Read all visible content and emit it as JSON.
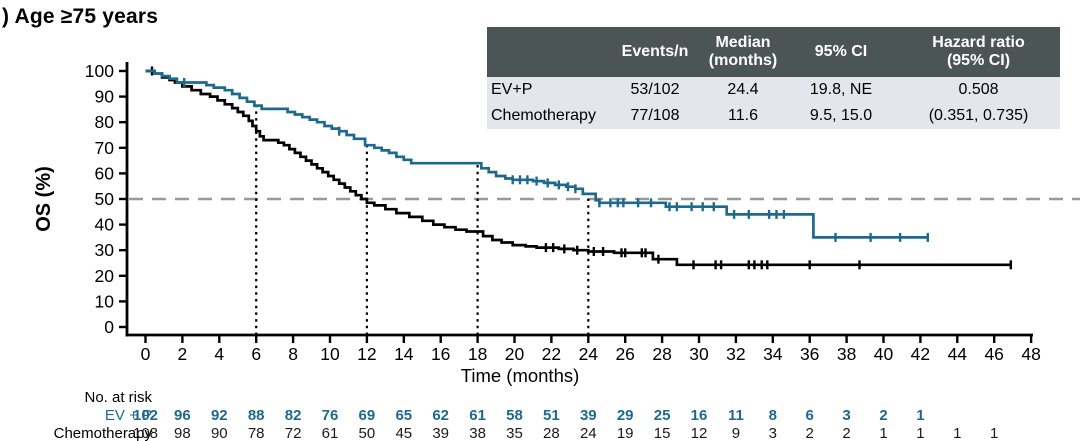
{
  "title": ") Age ≥75 years",
  "colors": {
    "evp_blue": "#1E6A8E",
    "chemo_black": "#000000",
    "table_header_bg": "#4B5555",
    "table_header_text": "#FFFFFF",
    "table_body_bg": "#E4E5ED",
    "median_dash_gray": "#999999"
  },
  "summary_table": {
    "headers": [
      "",
      "Events/n",
      "Median\n(months)",
      "95% CI",
      "Hazard ratio\n(95% CI)"
    ],
    "rows": [
      {
        "label": "EV+P",
        "events_n": "53/102",
        "median": "24.4",
        "ci": "19.8, NE",
        "hr": "0.508"
      },
      {
        "label": "Chemotherapy",
        "events_n": "77/108",
        "median": "11.6",
        "ci": "9.5, 15.0",
        "hr": "(0.351, 0.735)"
      }
    ]
  },
  "chart_data": {
    "type": "line",
    "subtype": "kaplan-meier-step",
    "xlabel": "Time (months)",
    "ylabel": "OS (%)",
    "xlim": [
      0,
      48
    ],
    "ylim": [
      0,
      100
    ],
    "xticks": [
      0,
      2,
      4,
      6,
      8,
      10,
      12,
      14,
      16,
      18,
      20,
      22,
      24,
      26,
      28,
      30,
      32,
      34,
      36,
      38,
      40,
      42,
      44,
      46,
      48
    ],
    "yticks": [
      0,
      10,
      20,
      30,
      40,
      50,
      60,
      70,
      80,
      90,
      100
    ],
    "grid": false,
    "reference_lines": {
      "horizontal_pct": 50,
      "vertical_months": [
        6,
        12,
        18,
        24
      ]
    },
    "series": [
      {
        "name": "EV+P",
        "color": "#1E6A8E",
        "steps": [
          [
            0,
            100
          ],
          [
            0.5,
            99
          ],
          [
            0.9,
            98
          ],
          [
            1.3,
            97
          ],
          [
            1.7,
            95.5
          ],
          [
            3.3,
            94.5
          ],
          [
            3.7,
            93.5
          ],
          [
            4.3,
            92.5
          ],
          [
            4.7,
            91
          ],
          [
            5.1,
            89.5
          ],
          [
            5.5,
            88
          ],
          [
            5.9,
            86.5
          ],
          [
            6.3,
            85.2
          ],
          [
            7.7,
            84
          ],
          [
            8.1,
            83
          ],
          [
            8.5,
            82
          ],
          [
            8.9,
            81
          ],
          [
            9.3,
            80
          ],
          [
            9.7,
            78.5
          ],
          [
            10.1,
            77.5
          ],
          [
            10.5,
            76.5
          ],
          [
            10.9,
            75
          ],
          [
            11.3,
            73.5
          ],
          [
            11.9,
            71
          ],
          [
            12.4,
            70
          ],
          [
            12.8,
            69
          ],
          [
            13.2,
            68
          ],
          [
            13.6,
            66.5
          ],
          [
            14.0,
            65.3
          ],
          [
            14.4,
            64
          ],
          [
            18.2,
            62
          ],
          [
            18.6,
            60.5
          ],
          [
            19.0,
            59
          ],
          [
            19.5,
            58
          ],
          [
            19.9,
            57.5
          ],
          [
            21.0,
            57
          ],
          [
            21.6,
            56.3
          ],
          [
            22.2,
            55.5
          ],
          [
            22.8,
            54.8
          ],
          [
            23.3,
            54
          ],
          [
            23.7,
            52
          ],
          [
            24.4,
            49.5
          ],
          [
            24.6,
            48.5
          ],
          [
            28.2,
            47
          ],
          [
            31.5,
            44
          ],
          [
            36.2,
            35
          ],
          [
            42.4,
            35
          ]
        ],
        "censors": [
          [
            2.1,
            95.5
          ],
          [
            10.5,
            76.5
          ],
          [
            19.9,
            57.5
          ],
          [
            20.3,
            57.5
          ],
          [
            20.7,
            57.5
          ],
          [
            21.2,
            57
          ],
          [
            21.8,
            56.3
          ],
          [
            22.4,
            55.5
          ],
          [
            22.9,
            54.8
          ],
          [
            23.3,
            54
          ],
          [
            24.6,
            48.5
          ],
          [
            25.2,
            48.5
          ],
          [
            25.6,
            48.5
          ],
          [
            25.9,
            48.5
          ],
          [
            26.7,
            48.5
          ],
          [
            27.4,
            48.5
          ],
          [
            28.4,
            47
          ],
          [
            28.8,
            47
          ],
          [
            29.6,
            47
          ],
          [
            30.2,
            47
          ],
          [
            30.8,
            47
          ],
          [
            31.9,
            44
          ],
          [
            32.7,
            44
          ],
          [
            33.8,
            44
          ],
          [
            34.2,
            44
          ],
          [
            34.6,
            44
          ],
          [
            37.4,
            35
          ],
          [
            39.3,
            35
          ],
          [
            40.9,
            35
          ],
          [
            42.4,
            35
          ]
        ]
      },
      {
        "name": "Chemotherapy",
        "color": "#000000",
        "steps": [
          [
            0,
            100
          ],
          [
            0.5,
            99
          ],
          [
            0.9,
            97.5
          ],
          [
            1.3,
            96.5
          ],
          [
            1.6,
            95.5
          ],
          [
            2.0,
            94
          ],
          [
            2.5,
            92.5
          ],
          [
            3.0,
            91
          ],
          [
            3.5,
            90
          ],
          [
            3.9,
            88.5
          ],
          [
            4.3,
            87
          ],
          [
            4.7,
            85.5
          ],
          [
            5.0,
            84
          ],
          [
            5.3,
            82.5
          ],
          [
            5.6,
            80.5
          ],
          [
            5.8,
            78.5
          ],
          [
            6.0,
            76.5
          ],
          [
            6.2,
            74.5
          ],
          [
            6.4,
            73
          ],
          [
            7.2,
            72
          ],
          [
            7.5,
            71
          ],
          [
            7.8,
            69.5
          ],
          [
            8.1,
            68
          ],
          [
            8.4,
            66.5
          ],
          [
            8.7,
            65
          ],
          [
            9.0,
            63.5
          ],
          [
            9.3,
            62
          ],
          [
            9.6,
            60.5
          ],
          [
            9.9,
            59
          ],
          [
            10.2,
            57.5
          ],
          [
            10.5,
            56
          ],
          [
            10.8,
            54.5
          ],
          [
            11.1,
            53
          ],
          [
            11.4,
            51.5
          ],
          [
            11.7,
            50
          ],
          [
            12.0,
            48.5
          ],
          [
            12.4,
            47.5
          ],
          [
            13.0,
            46
          ],
          [
            13.6,
            44.5
          ],
          [
            14.3,
            43
          ],
          [
            15.0,
            41.5
          ],
          [
            15.6,
            40
          ],
          [
            16.2,
            39
          ],
          [
            16.8,
            38
          ],
          [
            17.4,
            37.3
          ],
          [
            18.3,
            35.5
          ],
          [
            18.8,
            34
          ],
          [
            19.3,
            33
          ],
          [
            19.9,
            32
          ],
          [
            20.6,
            31.5
          ],
          [
            21.2,
            31
          ],
          [
            22.4,
            30.5
          ],
          [
            23.2,
            30
          ],
          [
            24.0,
            29.5
          ],
          [
            25.4,
            29
          ],
          [
            27.5,
            26.5
          ],
          [
            28.8,
            24.3
          ],
          [
            46.9,
            24.3
          ]
        ],
        "censors": [
          [
            0.35,
            100
          ],
          [
            21.7,
            31
          ],
          [
            22.1,
            31
          ],
          [
            22.7,
            30.5
          ],
          [
            23.4,
            30
          ],
          [
            24.3,
            29.5
          ],
          [
            24.8,
            29.5
          ],
          [
            25.8,
            29
          ],
          [
            26.0,
            29
          ],
          [
            26.9,
            29
          ],
          [
            27.1,
            29
          ],
          [
            27.8,
            26.5
          ],
          [
            29.7,
            24.3
          ],
          [
            30.9,
            24.3
          ],
          [
            31.2,
            24.3
          ],
          [
            32.7,
            24.3
          ],
          [
            33.0,
            24.3
          ],
          [
            33.4,
            24.3
          ],
          [
            33.7,
            24.3
          ],
          [
            36.0,
            24.3
          ],
          [
            38.7,
            24.3
          ],
          [
            46.9,
            24.3
          ]
        ]
      }
    ]
  },
  "at_risk": {
    "label": "No. at risk",
    "start_month": 0,
    "month_step": 2,
    "rows": [
      {
        "name": "EV + P",
        "color": "#1E6A8E",
        "bold": true,
        "values": [
          102,
          96,
          92,
          88,
          82,
          76,
          69,
          65,
          62,
          61,
          58,
          51,
          39,
          29,
          25,
          16,
          11,
          8,
          6,
          3,
          2,
          1
        ]
      },
      {
        "name": "Chemotherapy",
        "color": "#1A1A1A",
        "bold": false,
        "values": [
          108,
          98,
          90,
          78,
          72,
          61,
          50,
          45,
          39,
          38,
          35,
          28,
          24,
          19,
          15,
          12,
          9,
          3,
          2,
          2,
          1,
          1,
          1,
          1
        ]
      }
    ]
  }
}
